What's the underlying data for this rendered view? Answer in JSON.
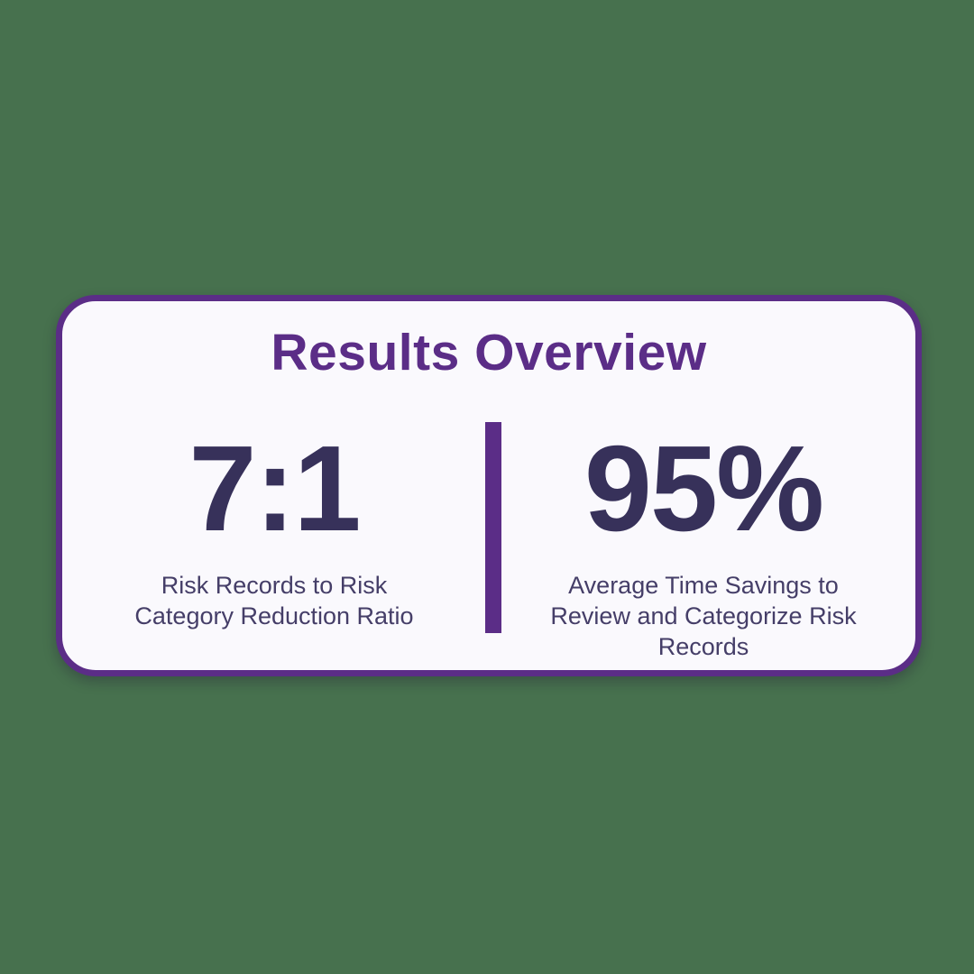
{
  "canvas": {
    "background_color": "#47714e"
  },
  "card": {
    "background_color": "#faf9fd",
    "border_color": "#5b2d87",
    "title": "Results Overview",
    "title_color": "#5b2d87",
    "divider_color": "#5b2d87",
    "stat_value_color": "#37315a",
    "stat_label_color": "#453e68",
    "stats": [
      {
        "value": "7:1",
        "label": "Risk Records to Risk Category Reduction Ratio"
      },
      {
        "value": "95%",
        "label": "Average Time Savings to Review and Categorize Risk Records"
      }
    ]
  }
}
